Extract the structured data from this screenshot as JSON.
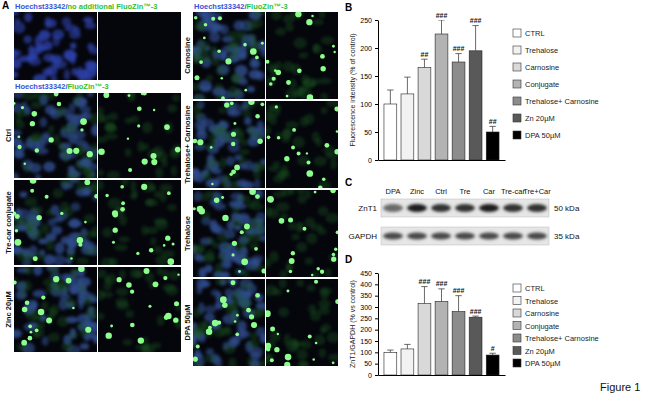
{
  "panel_a": {
    "label": "A",
    "header_no_additional": [
      "Hoechst33342/",
      "no additional FluoZin™-3"
    ],
    "header": [
      "Hoechst33342/",
      "FluoZin™-3"
    ],
    "left_rows": [
      "Ctrl",
      "Tre-car conjugate",
      "Zinc 20µM"
    ],
    "right_rows": [
      "Carnosine",
      "Trehalose+ Carnosine",
      "Trehalose",
      "DPA 50µM"
    ]
  },
  "panel_c": {
    "label": "C",
    "lanes": [
      "DPA",
      "Zinc",
      "Ctrl",
      "Tre",
      "Car",
      "Tre-car",
      "Tre+Car"
    ],
    "proteins": [
      "ZnT1",
      "GAPDH"
    ],
    "sizes": [
      "50 kDa",
      "35 kDa"
    ]
  },
  "figure_label": "Figure 1",
  "chart_data": [
    {
      "type": "bar",
      "title": "B",
      "ylabel": "Fluorescence intensity (% of control)",
      "categories": [
        "CTRL",
        "Trehalose",
        "Carnosine",
        "Conjugate",
        "Trehalose+ Carnosine",
        "Zn 20µM",
        "DPA 50µM"
      ],
      "values": [
        100,
        118,
        165,
        225,
        175,
        195,
        50
      ],
      "errors": [
        25,
        30,
        15,
        25,
        15,
        45,
        10
      ],
      "annotations": [
        null,
        null,
        "##",
        "###",
        "###",
        "###",
        "##"
      ],
      "colors": [
        "#ffffff",
        "#f2f2f2",
        "#d9d9d9",
        "#b3b3b3",
        "#8c8c8c",
        "#595959",
        "#000000"
      ],
      "ylim": [
        0,
        250
      ],
      "yticks": [
        0,
        50,
        100,
        150,
        200,
        250
      ],
      "legend": "right",
      "tick_labels": "y"
    },
    {
      "type": "bar",
      "title": "D",
      "ylabel": "ZnT1/GAPDH (% vs control)",
      "categories": [
        "CTRL",
        "Trehalose",
        "Carnosine",
        "Conjugate",
        "Trehalose+ Carnosine",
        "Zn 20µM",
        "DPA 50µM"
      ],
      "values": [
        100,
        115,
        315,
        325,
        280,
        255,
        88
      ],
      "errors": [
        10,
        20,
        75,
        55,
        70,
        5,
        8
      ],
      "annotations": [
        null,
        null,
        "###",
        "###",
        "###",
        "###",
        "#"
      ],
      "colors": [
        "#ffffff",
        "#f2f2f2",
        "#d9d9d9",
        "#b3b3b3",
        "#8c8c8c",
        "#595959",
        "#000000"
      ],
      "ylim": [
        0,
        450
      ],
      "yticks": [
        0,
        50,
        100,
        150,
        200,
        250,
        300,
        350,
        400,
        450
      ],
      "legend": "right",
      "tick_labels": "y"
    }
  ]
}
